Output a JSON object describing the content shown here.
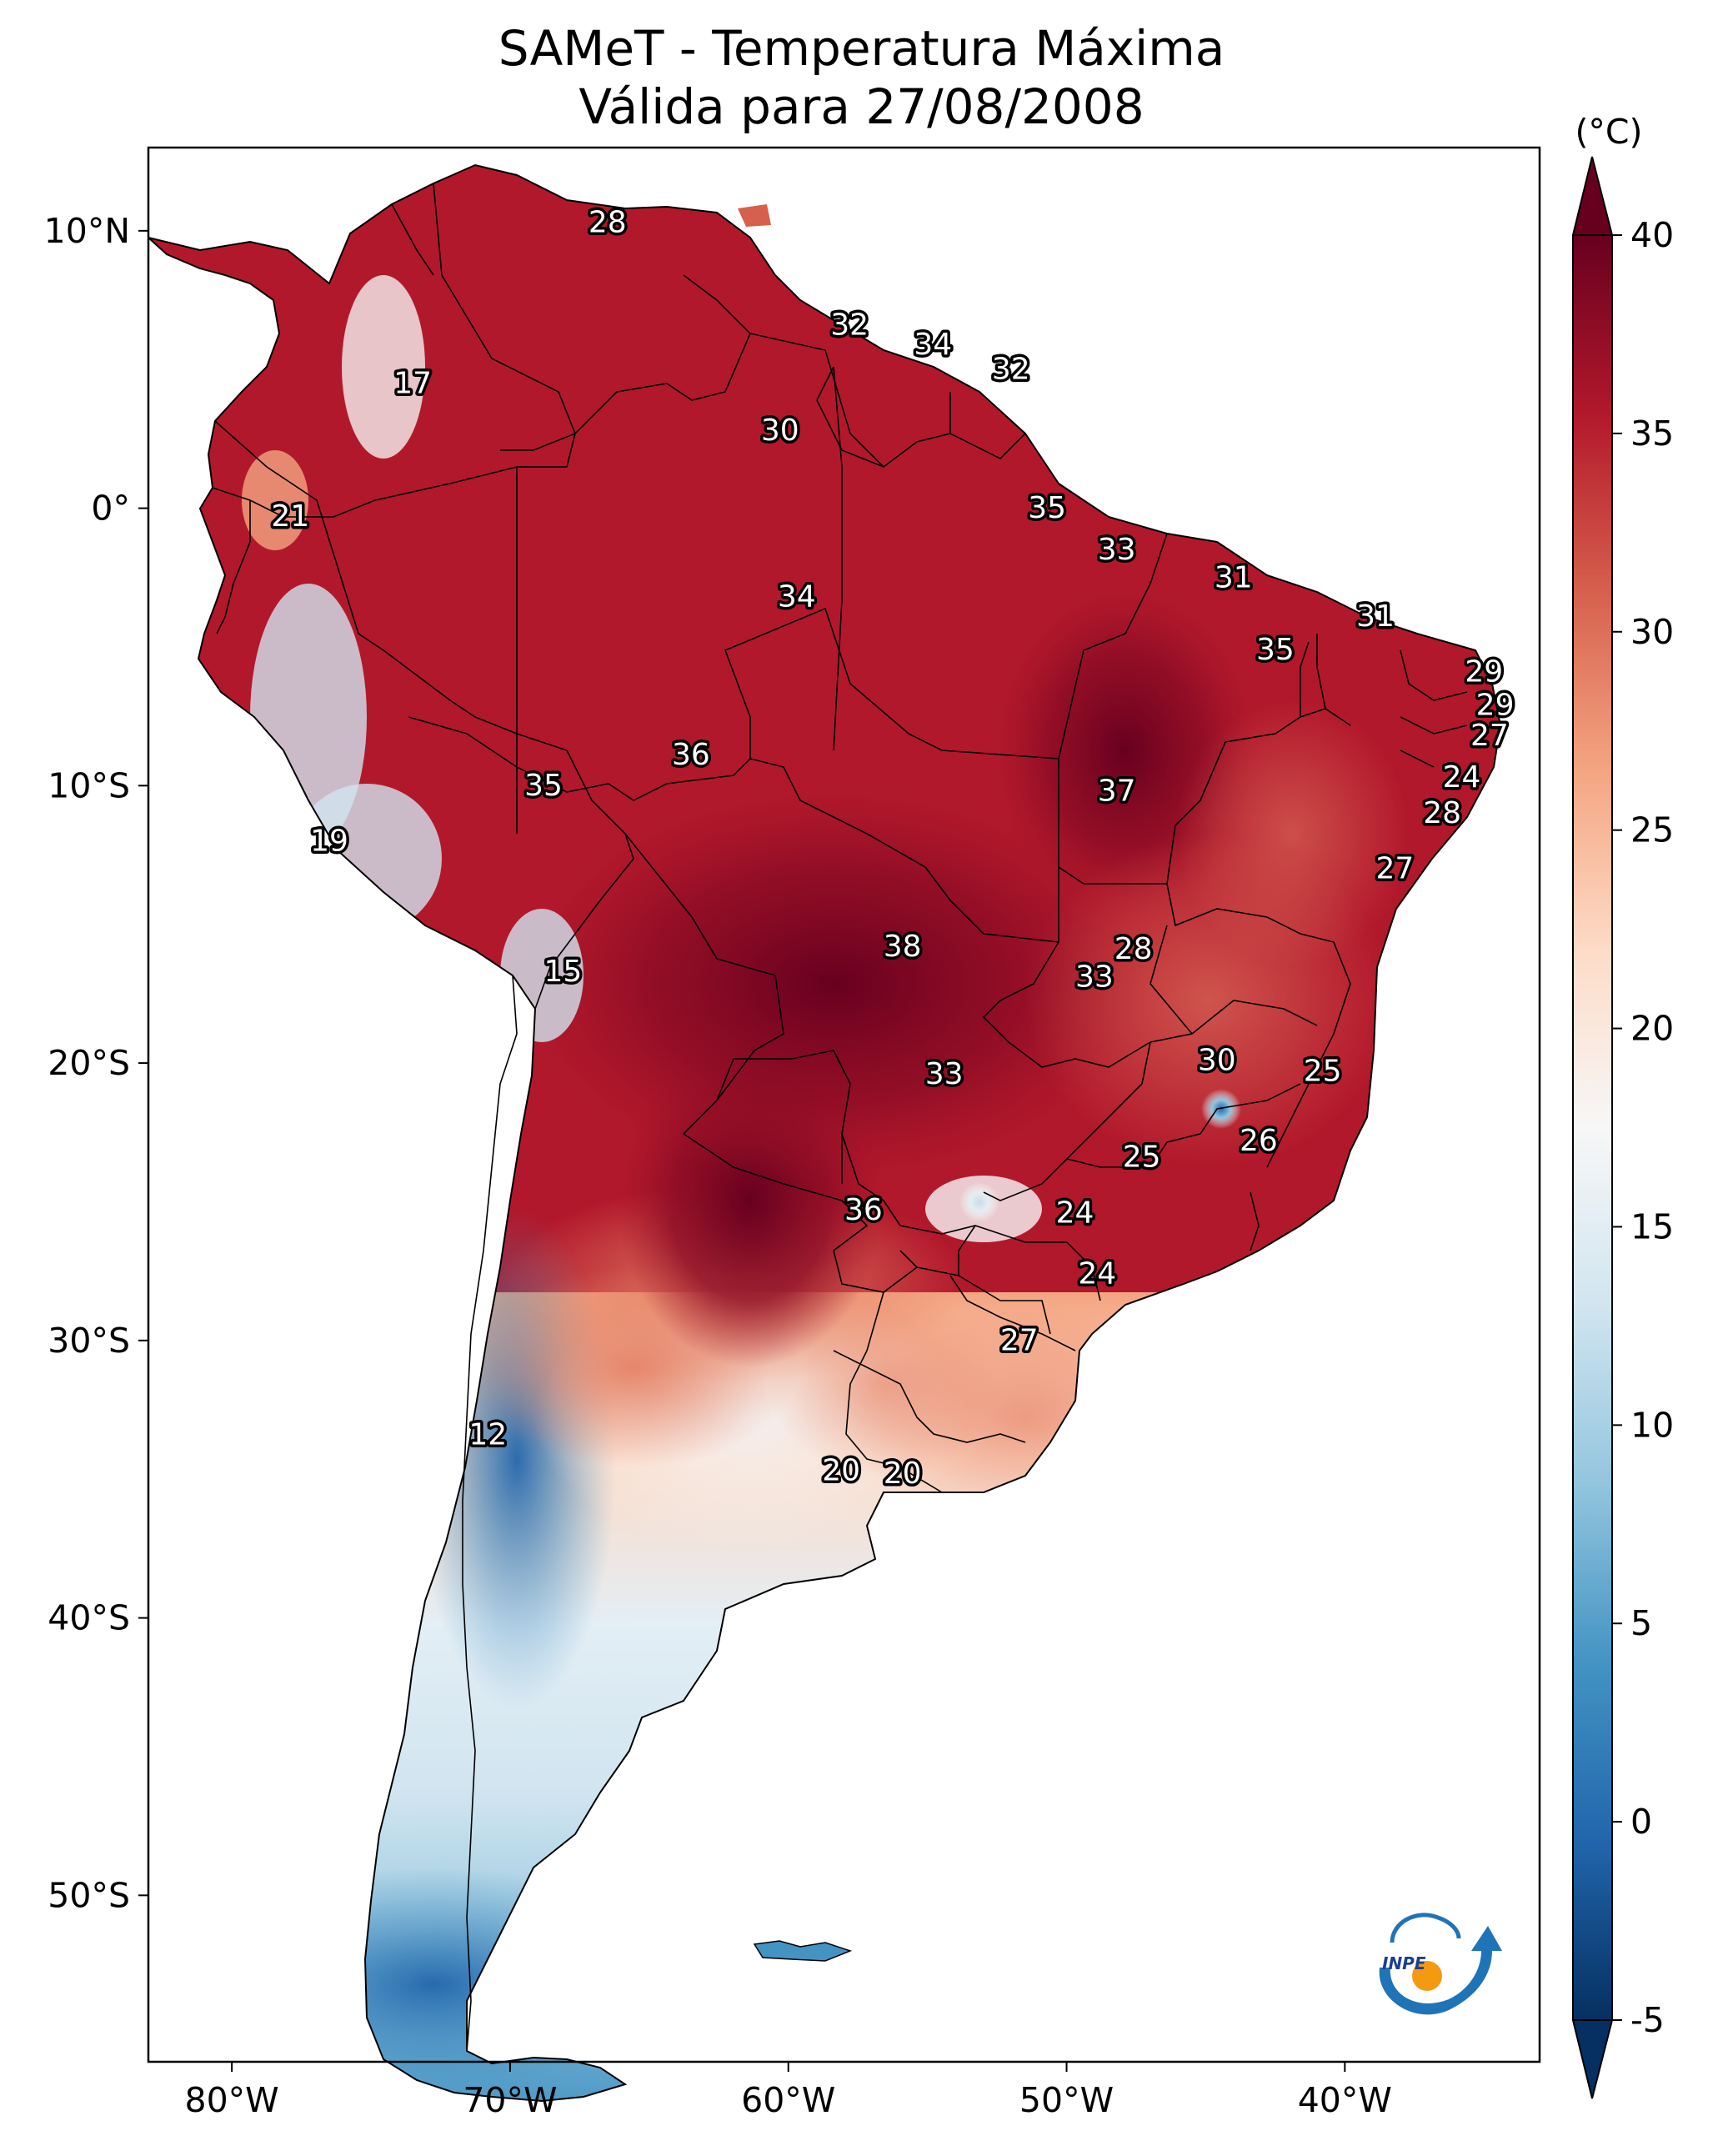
{
  "title": {
    "line1": "SAMeT - Temperatura Máxima",
    "line2": "Válida para 27/08/2008"
  },
  "colorbar": {
    "unit": "(°C)",
    "min": -5,
    "max": 40,
    "ticks": [
      "40",
      "35",
      "30",
      "25",
      "20",
      "15",
      "10",
      "5",
      "0",
      "-5"
    ],
    "colors": [
      "#053061",
      "#2166ac",
      "#4393c3",
      "#92c5de",
      "#d1e5f0",
      "#f7f7f7",
      "#fddbc7",
      "#f4a582",
      "#d6604d",
      "#b2182b",
      "#67001f"
    ]
  },
  "axes": {
    "lat_labels": [
      "10°N",
      "0°",
      "10°S",
      "20°S",
      "30°S",
      "40°S",
      "50°S"
    ],
    "lon_labels": [
      "80°W",
      "70°W",
      "60°W",
      "50°W",
      "40°W"
    ]
  },
  "map": {
    "region": "South America",
    "lon_range": [
      -83,
      -33
    ],
    "lat_range": [
      -56,
      13
    ]
  },
  "contour_labels": [
    {
      "text": "28",
      "lon": -66.5,
      "lat": 10.3
    },
    {
      "text": "17",
      "lon": -73.5,
      "lat": 4.5
    },
    {
      "text": "32",
      "lon": -57.8,
      "lat": 6.6
    },
    {
      "text": "34",
      "lon": -54.8,
      "lat": 5.9
    },
    {
      "text": "32",
      "lon": -52.0,
      "lat": 5.0
    },
    {
      "text": "30",
      "lon": -60.3,
      "lat": 2.8
    },
    {
      "text": "21",
      "lon": -77.9,
      "lat": -0.3
    },
    {
      "text": "35",
      "lon": -50.7,
      "lat": 0.0
    },
    {
      "text": "33",
      "lon": -48.2,
      "lat": -1.5
    },
    {
      "text": "31",
      "lon": -44.0,
      "lat": -2.5
    },
    {
      "text": "34",
      "lon": -59.7,
      "lat": -3.2
    },
    {
      "text": "31",
      "lon": -38.9,
      "lat": -3.9
    },
    {
      "text": "35",
      "lon": -42.5,
      "lat": -5.1
    },
    {
      "text": "29",
      "lon": -35.0,
      "lat": -5.9
    },
    {
      "text": "29",
      "lon": -34.6,
      "lat": -7.1
    },
    {
      "text": "27",
      "lon": -34.8,
      "lat": -8.2
    },
    {
      "text": "36",
      "lon": -63.5,
      "lat": -8.9
    },
    {
      "text": "24",
      "lon": -35.8,
      "lat": -9.7
    },
    {
      "text": "35",
      "lon": -68.8,
      "lat": -10.0
    },
    {
      "text": "37",
      "lon": -48.2,
      "lat": -10.2
    },
    {
      "text": "28",
      "lon": -36.5,
      "lat": -11.0
    },
    {
      "text": "19",
      "lon": -76.5,
      "lat": -12.0
    },
    {
      "text": "27",
      "lon": -38.2,
      "lat": -13.0
    },
    {
      "text": "38",
      "lon": -55.9,
      "lat": -15.8
    },
    {
      "text": "28",
      "lon": -47.6,
      "lat": -15.9
    },
    {
      "text": "15",
      "lon": -68.1,
      "lat": -16.7
    },
    {
      "text": "33",
      "lon": -49.0,
      "lat": -16.9
    },
    {
      "text": "30",
      "lon": -44.6,
      "lat": -19.9
    },
    {
      "text": "33",
      "lon": -54.4,
      "lat": -20.4
    },
    {
      "text": "25",
      "lon": -40.8,
      "lat": -20.3
    },
    {
      "text": "26",
      "lon": -43.1,
      "lat": -22.8
    },
    {
      "text": "25",
      "lon": -47.3,
      "lat": -23.4
    },
    {
      "text": "36",
      "lon": -57.3,
      "lat": -25.3
    },
    {
      "text": "24",
      "lon": -49.7,
      "lat": -25.4
    },
    {
      "text": "24",
      "lon": -48.9,
      "lat": -27.6
    },
    {
      "text": "27",
      "lon": -51.7,
      "lat": -30.0
    },
    {
      "text": "12",
      "lon": -70.8,
      "lat": -33.4
    },
    {
      "text": "20",
      "lon": -58.1,
      "lat": -34.7
    },
    {
      "text": "20",
      "lon": -55.9,
      "lat": -34.8
    }
  ],
  "logo": {
    "text": "INPE"
  }
}
